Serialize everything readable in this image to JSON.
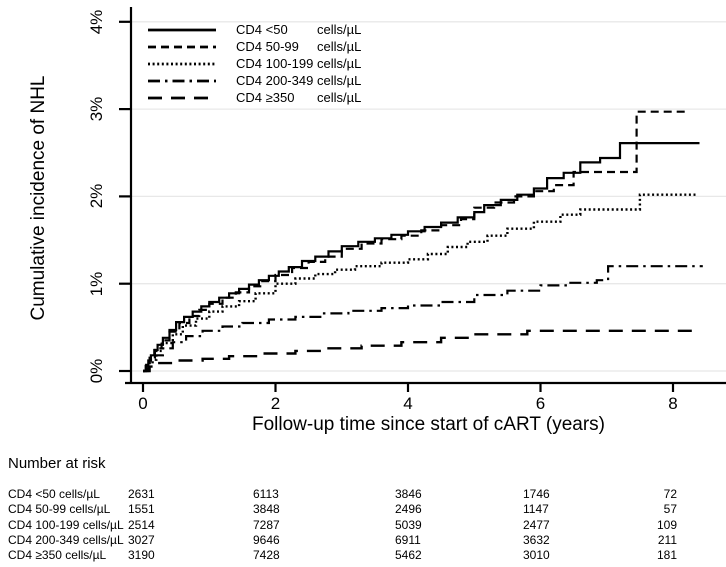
{
  "figure": {
    "y_axis_title": "Cumulative incidence of NHL",
    "x_axis_title": "Follow-up time since start of cART (years)",
    "colors": {
      "line": "#000000",
      "gridline": "#e8e8e8",
      "background": "#ffffff"
    }
  },
  "chart_data": {
    "type": "line",
    "subtype": "kaplan-meier-step-cumulative-incidence",
    "title": "",
    "xlabel": "Follow-up time since start of cART (years)",
    "ylabel": "Cumulative incidence of NHL",
    "xlim": [
      0,
      8.75
    ],
    "ylim": [
      0,
      4.3
    ],
    "x_ticks": [
      0,
      2,
      4,
      6,
      8
    ],
    "y_ticks": [
      0,
      1,
      2,
      3,
      4
    ],
    "y_tick_labels": [
      "0%",
      "1%",
      "2%",
      "3%",
      "4%"
    ],
    "grid": "horizontal-light",
    "legend_position": "top-left-inside",
    "series": [
      {
        "name": "CD4 <50 cells/µL",
        "legend_label": "CD4 <50",
        "legend_unit": "cells/µL",
        "pattern": "solid",
        "points": [
          [
            0,
            0
          ],
          [
            0.04,
            0.06
          ],
          [
            0.08,
            0.12
          ],
          [
            0.12,
            0.18
          ],
          [
            0.17,
            0.24
          ],
          [
            0.22,
            0.3
          ],
          [
            0.3,
            0.38
          ],
          [
            0.4,
            0.47
          ],
          [
            0.5,
            0.56
          ],
          [
            0.62,
            0.62
          ],
          [
            0.75,
            0.68
          ],
          [
            0.88,
            0.74
          ],
          [
            1.0,
            0.79
          ],
          [
            1.15,
            0.84
          ],
          [
            1.3,
            0.89
          ],
          [
            1.45,
            0.94
          ],
          [
            1.6,
            0.99
          ],
          [
            1.75,
            1.04
          ],
          [
            1.9,
            1.09
          ],
          [
            2.05,
            1.14
          ],
          [
            2.2,
            1.19
          ],
          [
            2.4,
            1.26
          ],
          [
            2.6,
            1.31
          ],
          [
            2.8,
            1.37
          ],
          [
            3.0,
            1.43
          ],
          [
            3.25,
            1.48
          ],
          [
            3.5,
            1.52
          ],
          [
            3.75,
            1.56
          ],
          [
            4.0,
            1.6
          ],
          [
            4.25,
            1.65
          ],
          [
            4.5,
            1.7
          ],
          [
            4.75,
            1.76
          ],
          [
            5.0,
            1.82
          ],
          [
            5.15,
            1.9
          ],
          [
            5.4,
            1.96
          ],
          [
            5.65,
            2.02
          ],
          [
            5.9,
            2.09
          ],
          [
            6.1,
            2.21
          ],
          [
            6.35,
            2.27
          ],
          [
            6.6,
            2.39
          ],
          [
            6.9,
            2.44
          ],
          [
            7.2,
            2.61
          ],
          [
            8.4,
            2.61
          ]
        ]
      },
      {
        "name": "CD4 50-99 cells/µL",
        "legend_label": "CD4 50-99",
        "legend_unit": "cells/µL",
        "pattern": "dash",
        "points": [
          [
            0,
            0
          ],
          [
            0.05,
            0.09
          ],
          [
            0.1,
            0.17
          ],
          [
            0.18,
            0.26
          ],
          [
            0.28,
            0.35
          ],
          [
            0.4,
            0.45
          ],
          [
            0.55,
            0.55
          ],
          [
            0.7,
            0.63
          ],
          [
            0.85,
            0.7
          ],
          [
            1.0,
            0.77
          ],
          [
            1.2,
            0.84
          ],
          [
            1.4,
            0.9
          ],
          [
            1.6,
            0.97
          ],
          [
            1.8,
            1.03
          ],
          [
            2.0,
            1.1
          ],
          [
            2.25,
            1.18
          ],
          [
            2.5,
            1.25
          ],
          [
            2.75,
            1.31
          ],
          [
            3.0,
            1.4
          ],
          [
            3.3,
            1.46
          ],
          [
            3.6,
            1.51
          ],
          [
            3.9,
            1.55
          ],
          [
            4.2,
            1.61
          ],
          [
            4.5,
            1.67
          ],
          [
            4.8,
            1.74
          ],
          [
            5.0,
            1.87
          ],
          [
            5.3,
            1.93
          ],
          [
            5.6,
            2.0
          ],
          [
            5.9,
            2.06
          ],
          [
            6.2,
            2.13
          ],
          [
            6.5,
            2.28
          ],
          [
            7.45,
            2.97
          ],
          [
            8.2,
            2.97
          ]
        ]
      },
      {
        "name": "CD4 100-199 cells/µL",
        "legend_label": "CD4 100-199",
        "legend_unit": "cells/µL",
        "pattern": "dot",
        "points": [
          [
            0,
            0
          ],
          [
            0.05,
            0.07
          ],
          [
            0.1,
            0.13
          ],
          [
            0.2,
            0.23
          ],
          [
            0.3,
            0.32
          ],
          [
            0.45,
            0.42
          ],
          [
            0.6,
            0.52
          ],
          [
            0.8,
            0.6
          ],
          [
            1.0,
            0.68
          ],
          [
            1.2,
            0.74
          ],
          [
            1.45,
            0.8
          ],
          [
            1.7,
            0.89
          ],
          [
            2.0,
            1.0
          ],
          [
            2.3,
            1.06
          ],
          [
            2.6,
            1.11
          ],
          [
            2.9,
            1.16
          ],
          [
            3.2,
            1.2
          ],
          [
            3.6,
            1.24
          ],
          [
            4.0,
            1.28
          ],
          [
            4.3,
            1.34
          ],
          [
            4.6,
            1.42
          ],
          [
            4.9,
            1.48
          ],
          [
            5.2,
            1.55
          ],
          [
            5.5,
            1.63
          ],
          [
            5.9,
            1.71
          ],
          [
            6.3,
            1.79
          ],
          [
            6.6,
            1.85
          ],
          [
            7.5,
            2.02
          ],
          [
            8.35,
            2.02
          ]
        ]
      },
      {
        "name": "CD4 200-349 cells/µL",
        "legend_label": "CD4 200-349",
        "legend_unit": "cells/µL",
        "pattern": "dashdot",
        "points": [
          [
            0,
            0
          ],
          [
            0.08,
            0.1
          ],
          [
            0.18,
            0.18
          ],
          [
            0.3,
            0.26
          ],
          [
            0.45,
            0.33
          ],
          [
            0.65,
            0.4
          ],
          [
            0.9,
            0.46
          ],
          [
            1.2,
            0.51
          ],
          [
            1.5,
            0.55
          ],
          [
            1.9,
            0.59
          ],
          [
            2.3,
            0.62
          ],
          [
            2.7,
            0.66
          ],
          [
            3.1,
            0.69
          ],
          [
            3.6,
            0.72
          ],
          [
            4.0,
            0.75
          ],
          [
            4.5,
            0.79
          ],
          [
            5.0,
            0.87
          ],
          [
            5.5,
            0.92
          ],
          [
            6.0,
            0.98
          ],
          [
            6.4,
            1.01
          ],
          [
            6.85,
            1.04
          ],
          [
            7.02,
            1.2
          ],
          [
            8.45,
            1.2
          ]
        ]
      },
      {
        "name": "CD4 ≥350 cells/µL",
        "legend_label": "CD4 ≥350",
        "legend_unit": "cells/µL",
        "pattern": "longdash",
        "points": [
          [
            0,
            0
          ],
          [
            0.1,
            0.05
          ],
          [
            0.2,
            0.09
          ],
          [
            0.5,
            0.12
          ],
          [
            0.9,
            0.14
          ],
          [
            1.3,
            0.17
          ],
          [
            1.8,
            0.2
          ],
          [
            2.3,
            0.23
          ],
          [
            2.8,
            0.26
          ],
          [
            3.3,
            0.29
          ],
          [
            3.9,
            0.33
          ],
          [
            4.5,
            0.38
          ],
          [
            4.95,
            0.42
          ],
          [
            5.8,
            0.46
          ],
          [
            8.4,
            0.46
          ]
        ]
      }
    ]
  },
  "risk_table": {
    "heading": "Number at risk",
    "times": [
      0,
      2,
      4,
      6,
      8
    ],
    "rows": [
      {
        "label": "CD4 <50 cells/µL",
        "counts": [
          "2631",
          "6113",
          "3846",
          "1746",
          "72"
        ]
      },
      {
        "label": "CD4 50-99 cells/µL",
        "counts": [
          "1551",
          "3848",
          "2496",
          "1147",
          "57"
        ]
      },
      {
        "label": "CD4 100-199 cells/µL",
        "counts": [
          "2514",
          "7287",
          "5039",
          "2477",
          "109"
        ]
      },
      {
        "label": "CD4 200-349 cells/µL",
        "counts": [
          "3027",
          "9646",
          "6911",
          "3632",
          "211"
        ]
      },
      {
        "label": "CD4 ≥350 cells/µL",
        "counts": [
          "3190",
          "7428",
          "5462",
          "3010",
          "181"
        ]
      }
    ]
  }
}
